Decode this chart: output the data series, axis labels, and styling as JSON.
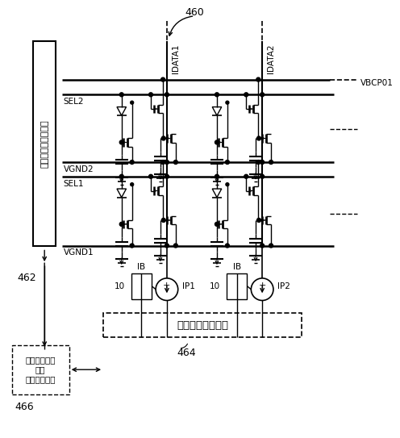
{
  "bg_color": "#ffffff",
  "line_color": "#000000",
  "title_460": "460",
  "title_462": "462",
  "title_464": "464",
  "title_466": "466",
  "label_address_driver": "アドレス・ドライバ",
  "label_source_driver": "ソース・ドライバ",
  "label_controller": "コントローラ\n及び\nスケジューラ",
  "label_SEL2": "SEL2",
  "label_SEL1": "SEL1",
  "label_VGND2": "VGND2",
  "label_VGND1": "VGND1",
  "label_VBCP01": "VBCP01",
  "label_IDATA1": "IDATA1",
  "label_IDATA2": "IDATA2",
  "label_IP1": "IP1",
  "label_IP2": "IP2",
  "label_IB": "IB",
  "label_10": "10"
}
